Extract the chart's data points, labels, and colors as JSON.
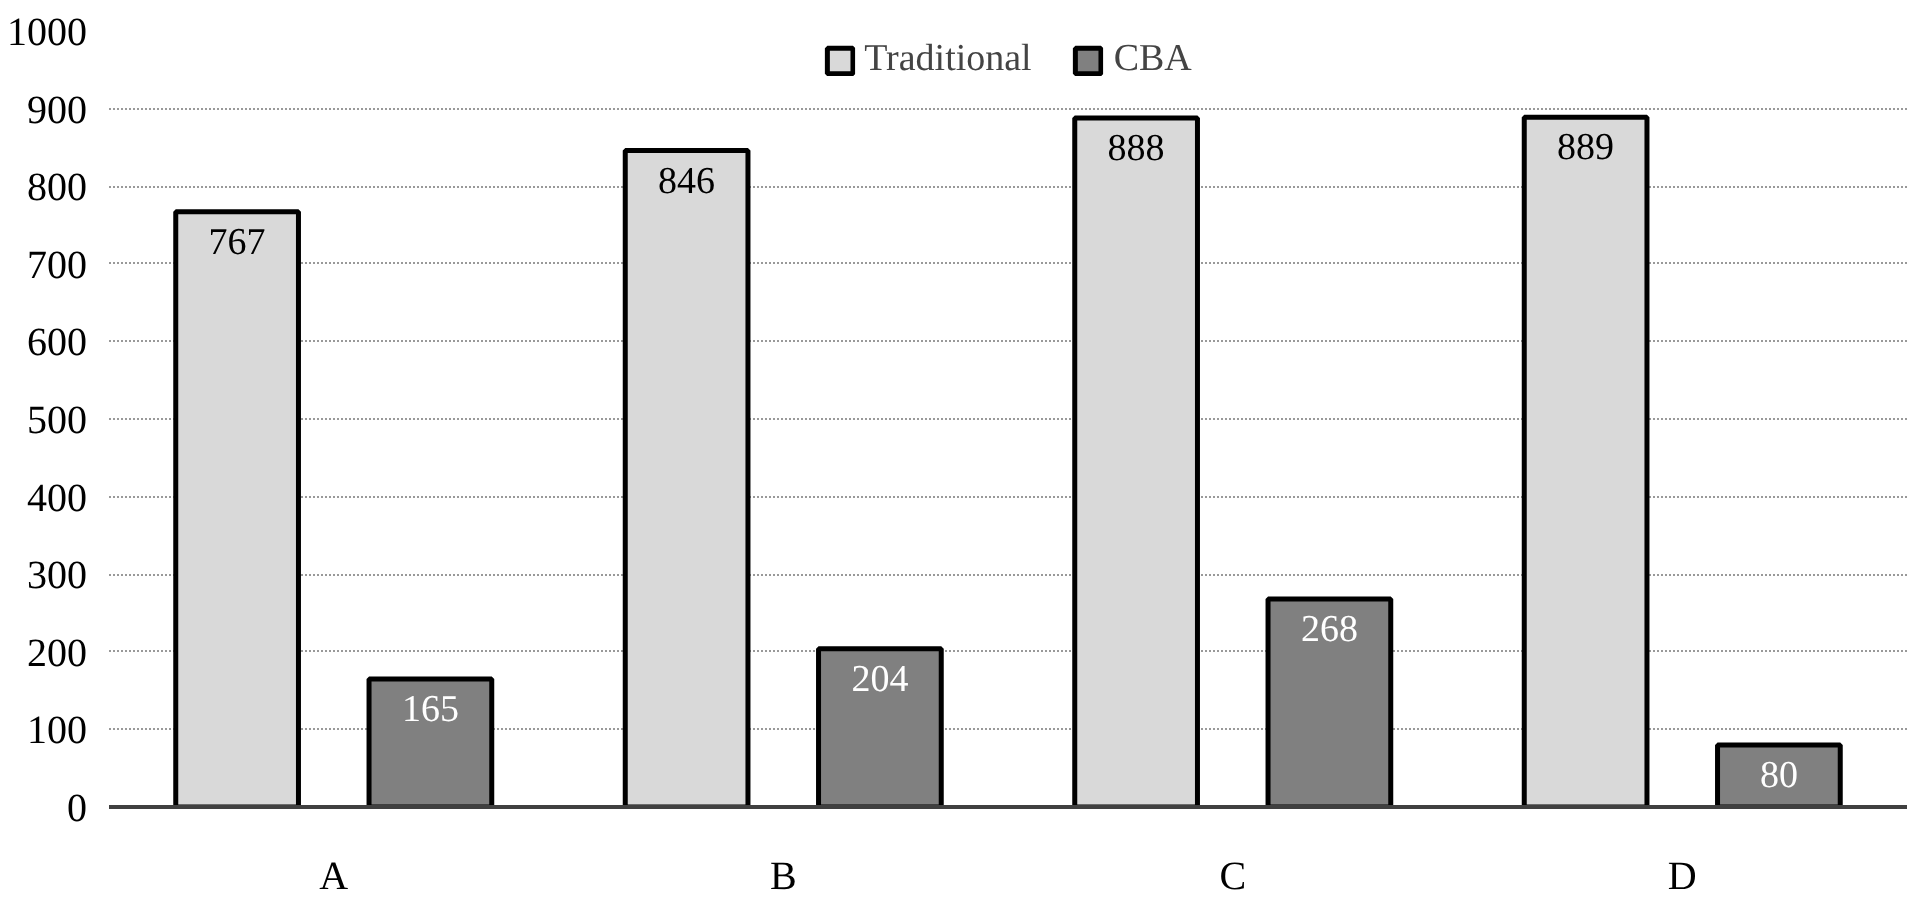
{
  "chart_data": {
    "type": "bar",
    "categories": [
      "A",
      "B",
      "C",
      "D"
    ],
    "series": [
      {
        "name": "Traditional",
        "color": "#d9d9d9",
        "values": [
          767,
          846,
          888,
          889
        ]
      },
      {
        "name": "CBA",
        "color": "#808080",
        "values": [
          165,
          204,
          268,
          80
        ]
      }
    ],
    "ylim": [
      0,
      1000
    ],
    "yticks": [
      0,
      100,
      200,
      300,
      400,
      500,
      600,
      700,
      800,
      900,
      1000
    ],
    "grid": "y",
    "legend": "top",
    "data_labels": true
  }
}
